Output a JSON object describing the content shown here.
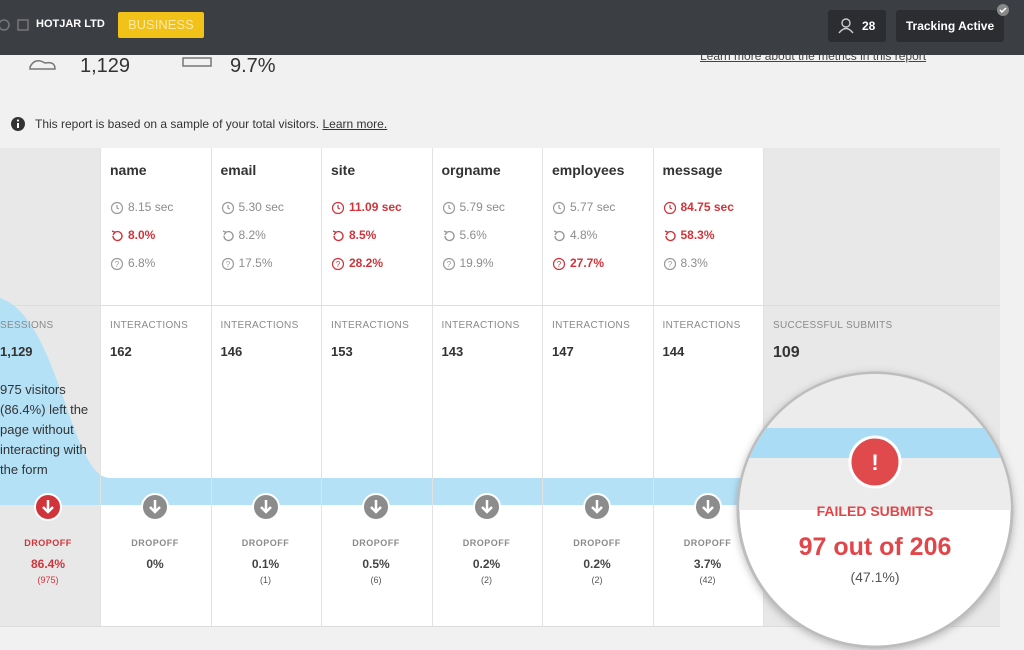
{
  "header": {
    "brand": "HOTJAR LTD",
    "plan": "BUSINESS",
    "users": "28",
    "tracking": "Tracking Active"
  },
  "summary": {
    "visitors": "1,129",
    "rate": "9.7%",
    "link": "Learn more about the metrics in this report"
  },
  "notice": {
    "text": "This report is based on a sample of your total visitors.",
    "link": "Learn more."
  },
  "sessions": {
    "label": "SESSIONS",
    "count": "1,129",
    "note": "975 visitors (86.4%) left the page without interacting with the form",
    "dropoff_label": "DROPOFF",
    "dropoff": "86.4%",
    "dropoff_count": "(975)"
  },
  "interactions_label": "INTERACTIONS",
  "dropoff_label": "DROPOFF",
  "fields": [
    {
      "name": "name",
      "metrics": [
        {
          "text": "8.15 sec",
          "alert": false
        },
        {
          "text": "8.0%",
          "alert": true
        },
        {
          "text": "6.8%",
          "alert": false
        }
      ],
      "interactions": "162",
      "dropoff": "0%"
    },
    {
      "name": "email",
      "metrics": [
        {
          "text": "5.30 sec",
          "alert": false
        },
        {
          "text": "8.2%",
          "alert": false
        },
        {
          "text": "17.5%",
          "alert": false
        }
      ],
      "interactions": "146",
      "dropoff": "0.1%",
      "dropoff_count": "(1)"
    },
    {
      "name": "site",
      "metrics": [
        {
          "text": "11.09 sec",
          "alert": true
        },
        {
          "text": "8.5%",
          "alert": true
        },
        {
          "text": "28.2%",
          "alert": true
        }
      ],
      "interactions": "153",
      "dropoff": "0.5%",
      "dropoff_count": "(6)"
    },
    {
      "name": "orgname",
      "metrics": [
        {
          "text": "5.79 sec",
          "alert": false
        },
        {
          "text": "5.6%",
          "alert": false
        },
        {
          "text": "19.9%",
          "alert": false
        }
      ],
      "interactions": "143",
      "dropoff": "0.2%",
      "dropoff_count": "(2)"
    },
    {
      "name": "employees",
      "metrics": [
        {
          "text": "5.77 sec",
          "alert": false
        },
        {
          "text": "4.8%",
          "alert": false
        },
        {
          "text": "27.7%",
          "alert": true
        }
      ],
      "interactions": "147",
      "dropoff": "0.2%",
      "dropoff_count": "(2)"
    },
    {
      "name": "message",
      "metrics": [
        {
          "text": "84.75 sec",
          "alert": true
        },
        {
          "text": "58.3%",
          "alert": true
        },
        {
          "text": "8.3%",
          "alert": false
        }
      ],
      "interactions": "144",
      "dropoff": "3.7%",
      "dropoff_count": "(42)"
    }
  ],
  "submits": {
    "label": "SUCCESSFUL SUBMITS",
    "count": "109"
  },
  "failed": {
    "label": "FAILED SUBMITS",
    "count": "97 out of 206",
    "percent": "(47.1%)"
  }
}
